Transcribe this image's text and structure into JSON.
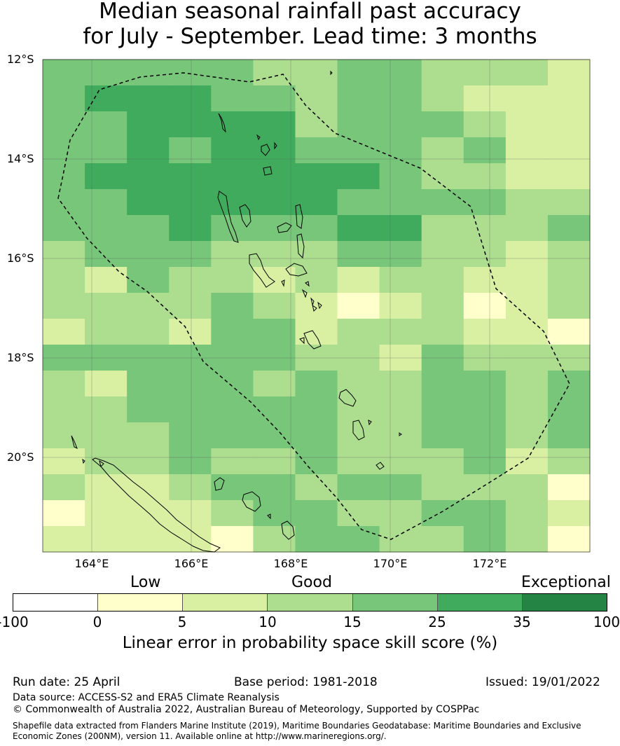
{
  "title": {
    "line1": "Median seasonal rainfall past accuracy",
    "line2": "for July - September. Lead time: 3 months"
  },
  "map": {
    "lat_labels": [
      "12°S",
      "14°S",
      "16°S",
      "18°S",
      "20°S"
    ],
    "lon_labels": [
      "164°E",
      "166°E",
      "168°E",
      "170°E",
      "172°E"
    ],
    "colors": [
      "#ffffff",
      "#ffffcc",
      "#d9f0a3",
      "#addd8e",
      "#78c679",
      "#41ab5d",
      "#238443"
    ],
    "grid": [
      [
        4,
        4,
        4,
        4,
        4,
        3,
        3,
        4,
        4,
        3,
        3,
        3,
        2
      ],
      [
        4,
        5,
        5,
        5,
        4,
        4,
        3,
        4,
        4,
        3,
        2,
        2,
        2
      ],
      [
        4,
        4,
        5,
        5,
        5,
        5,
        3,
        4,
        4,
        4,
        3,
        2,
        2
      ],
      [
        4,
        4,
        5,
        4,
        5,
        5,
        4,
        4,
        4,
        3,
        4,
        2,
        2
      ],
      [
        4,
        5,
        5,
        5,
        5,
        5,
        5,
        5,
        4,
        3,
        3,
        2,
        2
      ],
      [
        4,
        4,
        5,
        5,
        5,
        5,
        5,
        4,
        4,
        4,
        4,
        3,
        3
      ],
      [
        4,
        4,
        4,
        5,
        4,
        4,
        4,
        5,
        5,
        3,
        3,
        3,
        4
      ],
      [
        3,
        4,
        4,
        4,
        3,
        3,
        3,
        4,
        4,
        3,
        3,
        2,
        3
      ],
      [
        3,
        2,
        4,
        3,
        3,
        2,
        3,
        2,
        3,
        3,
        2,
        2,
        3
      ],
      [
        3,
        3,
        3,
        3,
        4,
        3,
        2,
        1,
        2,
        3,
        1,
        2,
        3
      ],
      [
        2,
        3,
        3,
        2,
        4,
        4,
        2,
        3,
        3,
        3,
        2,
        2,
        1
      ],
      [
        4,
        4,
        4,
        4,
        4,
        4,
        3,
        3,
        2,
        4,
        3,
        3,
        3
      ],
      [
        3,
        2,
        4,
        4,
        4,
        3,
        4,
        3,
        3,
        4,
        4,
        3,
        4
      ],
      [
        3,
        3,
        4,
        4,
        4,
        4,
        4,
        3,
        3,
        4,
        4,
        3,
        4
      ],
      [
        3,
        3,
        3,
        4,
        4,
        4,
        4,
        3,
        3,
        4,
        4,
        3,
        4
      ],
      [
        2,
        3,
        3,
        4,
        3,
        3,
        4,
        3,
        3,
        3,
        4,
        2,
        3
      ],
      [
        3,
        2,
        2,
        3,
        4,
        4,
        3,
        4,
        4,
        3,
        3,
        3,
        1
      ],
      [
        1,
        2,
        2,
        2,
        3,
        4,
        4,
        3,
        3,
        4,
        4,
        3,
        2
      ],
      [
        2,
        2,
        2,
        2,
        1,
        3,
        4,
        4,
        3,
        3,
        4,
        3,
        1
      ]
    ]
  },
  "legend": {
    "categories": [
      "Low",
      "Good",
      "Exceptional"
    ],
    "colors": [
      "#ffffff",
      "#ffffcc",
      "#d9f0a3",
      "#addd8e",
      "#78c679",
      "#41ab5d",
      "#238443"
    ],
    "ticks": [
      "-100",
      "0",
      "5",
      "10",
      "15",
      "25",
      "35",
      "100"
    ],
    "title": "Linear error in probability space skill score (%)"
  },
  "info": {
    "run_date": "Run date: 25 April",
    "base_period": "Base period: 1981-2018",
    "issued": "Issued: 19/01/2022",
    "data_source": "Data source: ACCESS-S2 and ERA5 Climate Reanalysis",
    "copyright": "© Commonwealth of Australia 2022, Australian Bureau of Meteorology, Supported by COSPPac",
    "shapefile_line1": "Shapefile data extracted from Flanders Marine Institute (2019), Maritime Boundaries Geodatabase: Maritime Boundaries and Exclusive",
    "shapefile_line2": "Economic Zones (200NM), version 11. Available online at http://www.marineregions.org/."
  }
}
